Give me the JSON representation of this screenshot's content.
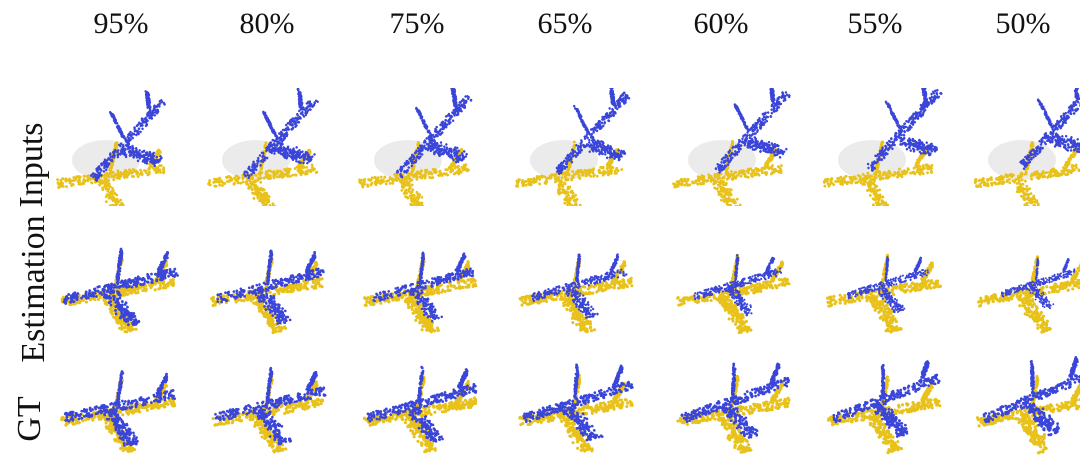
{
  "columns": [
    "95%",
    "80%",
    "75%",
    "65%",
    "60%",
    "55%",
    "50%"
  ],
  "rows": [
    {
      "label": "Inputs",
      "kind": "input"
    },
    {
      "label": "Estimation",
      "kind": "est"
    },
    {
      "label": "GT",
      "kind": "gt"
    }
  ],
  "colors": {
    "source": "#3a45d9",
    "target": "#e8c21a"
  }
}
